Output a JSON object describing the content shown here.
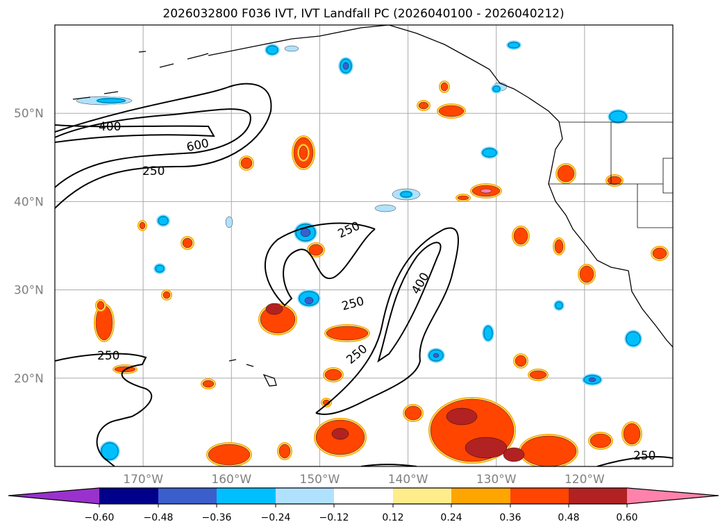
{
  "title": "2026032800 F036 IVT, IVT Landfall PC (2026040100 - 2026040212)",
  "map": {
    "lon_range": [
      -180,
      -110
    ],
    "lat_range": [
      10,
      60
    ],
    "lat_labels": [
      "50°N",
      "40°N",
      "30°N",
      "20°N"
    ],
    "lon_labels": [
      "170°W",
      "160°W",
      "150°W",
      "140°W",
      "130°W",
      "120°W"
    ],
    "contour_labels": [
      "400",
      "600",
      "250",
      "250",
      "250",
      "400",
      "250",
      "250",
      "250"
    ]
  },
  "colorbar": {
    "ticks": [
      "−0.60",
      "−0.48",
      "−0.36",
      "−0.24",
      "−0.12",
      "0.12",
      "0.24",
      "0.36",
      "0.48",
      "0.60"
    ],
    "under_color": "#9932CC",
    "colors": [
      "#00008B",
      "#3A5FCD",
      "#00BFFF",
      "#B0E2FF",
      "#FFFFFF",
      "#FFEC8B",
      "#FFA500",
      "#FF4500",
      "#B22222"
    ],
    "over_color": "#FF82AB"
  }
}
